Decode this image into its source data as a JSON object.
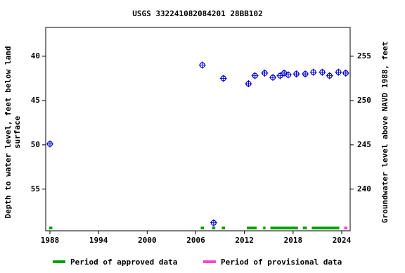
{
  "chart_data": {
    "type": "scatter",
    "title": "USGS 332241082084201 28BB102",
    "ylabel": [
      "Depth to water level, feet below land",
      "surface"
    ],
    "y2label": "Groundwater level above NAVD 1988, feet",
    "xlim": [
      1987.48,
      2025.04
    ],
    "xticks": [
      1988,
      1994,
      2000,
      2006,
      2012,
      2018,
      2024
    ],
    "ylim": [
      36.75,
      59.7
    ],
    "yticks": [
      40,
      45,
      50,
      55
    ],
    "y2lim": [
      258.25,
      235.3
    ],
    "y2ticks": [
      240,
      245,
      250,
      255
    ],
    "points": {
      "color": "#0000cc",
      "x": [
        1988.0,
        2006.8,
        2008.2,
        2009.4,
        2012.5,
        2013.3,
        2014.5,
        2015.5,
        2016.4,
        2016.9,
        2017.4,
        2018.4,
        2019.5,
        2020.5,
        2021.6,
        2022.5,
        2023.6,
        2024.5
      ],
      "values": [
        49.9,
        41.0,
        58.8,
        42.5,
        43.1,
        42.2,
        41.9,
        42.4,
        42.2,
        41.9,
        42.1,
        42.0,
        42.0,
        41.8,
        41.8,
        42.2,
        41.8,
        41.9
      ]
    },
    "series": [
      {
        "name": "Period of approved data",
        "color": "#00a000",
        "periods": [
          [
            1987.9,
            1988.3
          ],
          [
            2006.6,
            2007.0
          ],
          [
            2008.0,
            2008.4
          ],
          [
            2009.2,
            2009.6
          ],
          [
            2012.3,
            2013.5
          ],
          [
            2014.3,
            2014.6
          ],
          [
            2015.2,
            2018.6
          ],
          [
            2019.2,
            2019.7
          ],
          [
            2020.3,
            2023.7
          ]
        ]
      },
      {
        "name": "Period of provisional data",
        "color": "#ff44cc",
        "periods": [
          [
            2024.3,
            2024.7
          ]
        ]
      }
    ]
  }
}
